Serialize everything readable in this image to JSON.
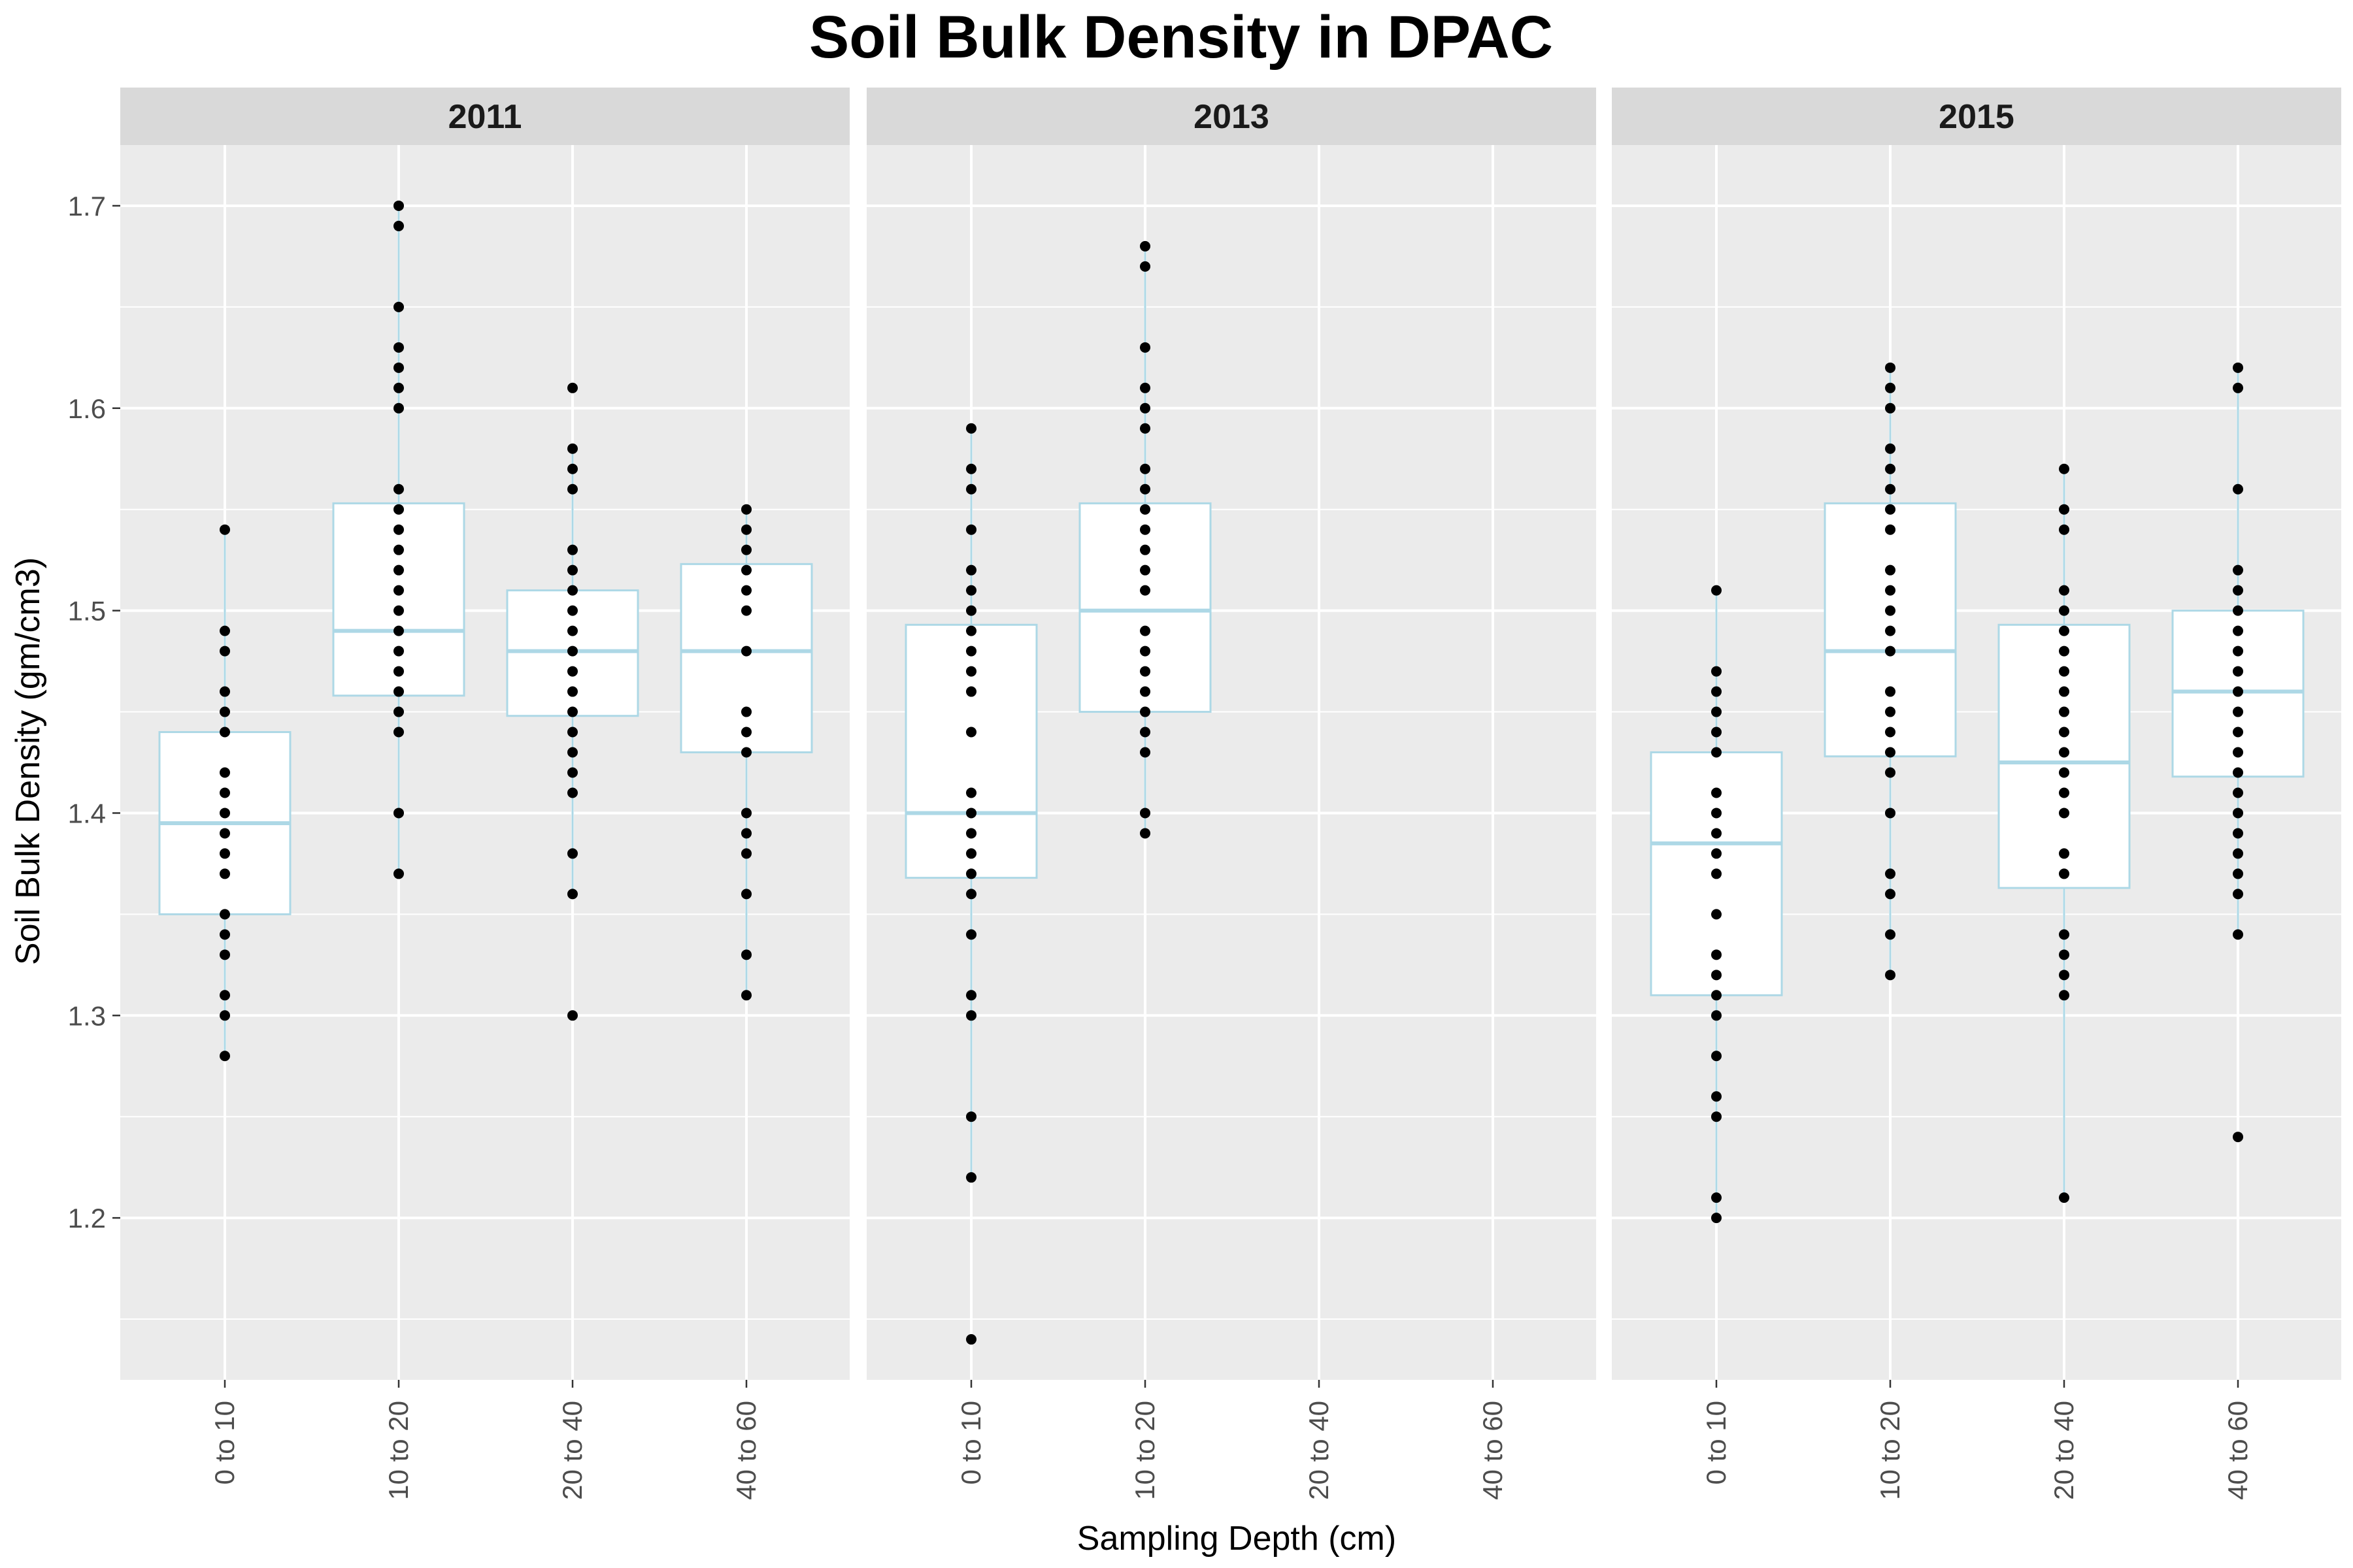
{
  "chart_data": {
    "type": "boxplot",
    "title": "Soil Bulk Density in DPAC",
    "xlabel": "Sampling Depth (cm)",
    "ylabel": "Soil Bulk Density (gm/cm3)",
    "ylim": [
      1.12,
      1.73
    ],
    "yticks": [
      1.2,
      1.3,
      1.4,
      1.5,
      1.6,
      1.7
    ],
    "ytick_labels": [
      "1.2",
      "1.3",
      "1.4",
      "1.5",
      "1.6",
      "1.7"
    ],
    "categories": [
      "0 to 10",
      "10 to 20",
      "20 to 40",
      "40 to 60"
    ],
    "grid": true,
    "colors": {
      "box_outline": "#ADD8E6",
      "box_fill": "#FFFFFF",
      "points": "#000000",
      "panel_background": "#EBEBEB",
      "strip_background": "#D9D9D9"
    },
    "panels": [
      {
        "label": "2011",
        "boxes": [
          {
            "category": "0 to 10",
            "whisker_low": 1.28,
            "q1": 1.35,
            "median": 1.395,
            "q3": 1.44,
            "whisker_high": 1.54,
            "points": [
              1.54,
              1.49,
              1.48,
              1.46,
              1.45,
              1.44,
              1.42,
              1.41,
              1.4,
              1.39,
              1.38,
              1.37,
              1.35,
              1.34,
              1.33,
              1.31,
              1.3,
              1.28
            ]
          },
          {
            "category": "10 to 20",
            "whisker_low": 1.37,
            "q1": 1.458,
            "median": 1.49,
            "q3": 1.553,
            "whisker_high": 1.7,
            "points": [
              1.7,
              1.69,
              1.65,
              1.63,
              1.62,
              1.61,
              1.6,
              1.56,
              1.55,
              1.54,
              1.53,
              1.52,
              1.51,
              1.5,
              1.49,
              1.48,
              1.47,
              1.46,
              1.45,
              1.44,
              1.4,
              1.37
            ]
          },
          {
            "category": "20 to 40",
            "whisker_low": 1.36,
            "q1": 1.448,
            "median": 1.48,
            "q3": 1.51,
            "whisker_high": 1.58,
            "points": [
              1.61,
              1.58,
              1.57,
              1.56,
              1.53,
              1.52,
              1.51,
              1.5,
              1.49,
              1.48,
              1.47,
              1.46,
              1.45,
              1.44,
              1.43,
              1.42,
              1.41,
              1.38,
              1.36,
              1.3
            ]
          },
          {
            "category": "40 to 60",
            "whisker_low": 1.31,
            "q1": 1.43,
            "median": 1.48,
            "q3": 1.523,
            "whisker_high": 1.55,
            "points": [
              1.55,
              1.54,
              1.53,
              1.52,
              1.51,
              1.5,
              1.48,
              1.45,
              1.44,
              1.43,
              1.4,
              1.39,
              1.38,
              1.36,
              1.33,
              1.31
            ]
          }
        ]
      },
      {
        "label": "2013",
        "boxes": [
          {
            "category": "0 to 10",
            "whisker_low": 1.22,
            "q1": 1.368,
            "median": 1.4,
            "q3": 1.493,
            "whisker_high": 1.59,
            "points": [
              1.59,
              1.57,
              1.56,
              1.54,
              1.52,
              1.51,
              1.5,
              1.49,
              1.48,
              1.47,
              1.46,
              1.44,
              1.41,
              1.4,
              1.39,
              1.38,
              1.37,
              1.36,
              1.34,
              1.31,
              1.3,
              1.25,
              1.22,
              1.14
            ]
          },
          {
            "category": "10 to 20",
            "whisker_low": 1.39,
            "q1": 1.45,
            "median": 1.5,
            "q3": 1.553,
            "whisker_high": 1.68,
            "points": [
              1.68,
              1.67,
              1.63,
              1.61,
              1.6,
              1.59,
              1.57,
              1.56,
              1.55,
              1.54,
              1.53,
              1.52,
              1.51,
              1.49,
              1.48,
              1.47,
              1.46,
              1.45,
              1.44,
              1.43,
              1.4,
              1.39
            ]
          }
        ]
      },
      {
        "label": "2015",
        "boxes": [
          {
            "category": "0 to 10",
            "whisker_low": 1.2,
            "q1": 1.31,
            "median": 1.385,
            "q3": 1.43,
            "whisker_high": 1.51,
            "points": [
              1.51,
              1.47,
              1.46,
              1.45,
              1.44,
              1.43,
              1.41,
              1.4,
              1.39,
              1.38,
              1.37,
              1.35,
              1.33,
              1.32,
              1.31,
              1.3,
              1.28,
              1.26,
              1.25,
              1.21,
              1.2
            ]
          },
          {
            "category": "10 to 20",
            "whisker_low": 1.32,
            "q1": 1.428,
            "median": 1.48,
            "q3": 1.553,
            "whisker_high": 1.62,
            "points": [
              1.62,
              1.61,
              1.6,
              1.58,
              1.57,
              1.56,
              1.55,
              1.54,
              1.52,
              1.51,
              1.5,
              1.49,
              1.48,
              1.46,
              1.45,
              1.44,
              1.43,
              1.42,
              1.4,
              1.37,
              1.36,
              1.34,
              1.32
            ]
          },
          {
            "category": "20 to 40",
            "whisker_low": 1.21,
            "q1": 1.363,
            "median": 1.425,
            "q3": 1.493,
            "whisker_high": 1.57,
            "points": [
              1.57,
              1.55,
              1.54,
              1.51,
              1.5,
              1.49,
              1.48,
              1.47,
              1.46,
              1.45,
              1.44,
              1.43,
              1.42,
              1.41,
              1.4,
              1.38,
              1.37,
              1.34,
              1.33,
              1.32,
              1.31,
              1.21
            ]
          },
          {
            "category": "40 to 60",
            "whisker_low": 1.34,
            "q1": 1.418,
            "median": 1.46,
            "q3": 1.5,
            "whisker_high": 1.62,
            "points": [
              1.62,
              1.61,
              1.56,
              1.52,
              1.51,
              1.5,
              1.49,
              1.48,
              1.47,
              1.46,
              1.45,
              1.44,
              1.43,
              1.42,
              1.41,
              1.4,
              1.39,
              1.38,
              1.37,
              1.36,
              1.34,
              1.24
            ]
          }
        ]
      }
    ]
  }
}
